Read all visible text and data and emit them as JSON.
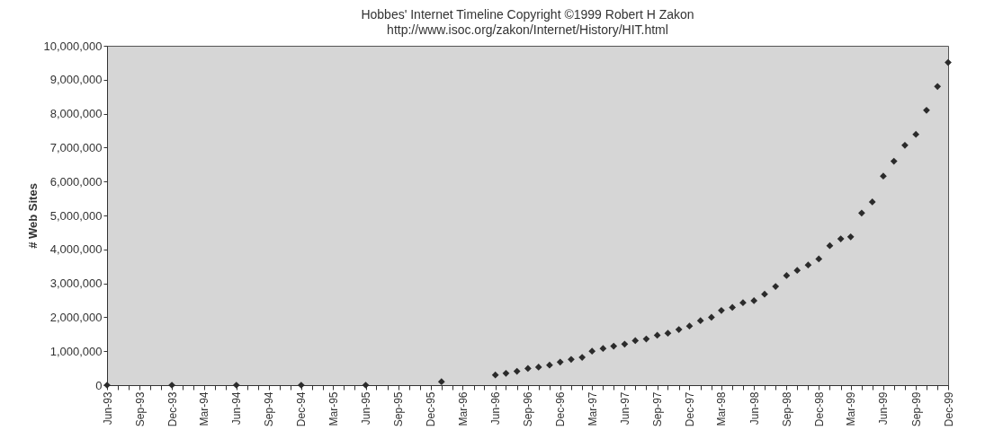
{
  "chart_data": {
    "type": "scatter",
    "title": "Hobbes' Internet Timeline Copyright ©1999 Robert H Zakon",
    "subtitle": "http://www.isoc.org/zakon/Internet/History/HIT.html",
    "ylabel": "# Web Sites",
    "x": [
      "1993-06",
      "1993-12",
      "1994-06",
      "1994-12",
      "1995-06",
      "1996-01",
      "1996-06",
      "1996-07",
      "1996-08",
      "1996-09",
      "1996-10",
      "1996-11",
      "1996-12",
      "1997-01",
      "1997-02",
      "1997-03",
      "1997-04",
      "1997-05",
      "1997-06",
      "1997-07",
      "1997-08",
      "1997-09",
      "1997-10",
      "1997-11",
      "1997-12",
      "1998-01",
      "1998-02",
      "1998-03",
      "1998-04",
      "1998-05",
      "1998-06",
      "1998-07",
      "1998-08",
      "1998-09",
      "1998-10",
      "1998-11",
      "1998-12",
      "1999-01",
      "1999-02",
      "1999-03",
      "1999-04",
      "1999-05",
      "1999-06",
      "1999-07",
      "1999-08",
      "1999-09",
      "1999-10",
      "1999-11",
      "1999-12"
    ],
    "series": [
      {
        "color": "#2b2b2b",
        "values": [
          0,
          0,
          0,
          0,
          0,
          100000,
          300000,
          350000,
          410000,
          490000,
          530000,
          590000,
          680000,
          760000,
          820000,
          1000000,
          1080000,
          1150000,
          1210000,
          1310000,
          1360000,
          1470000,
          1530000,
          1640000,
          1740000,
          1900000,
          2000000,
          2200000,
          2290000,
          2430000,
          2490000,
          2680000,
          2910000,
          3230000,
          3380000,
          3540000,
          3720000,
          4110000,
          4310000,
          4370000,
          5070000,
          5400000,
          6160000,
          6600000,
          7070000,
          7390000,
          8100000,
          8800000,
          9510000
        ]
      }
    ],
    "xlim": [
      "1993-06",
      "1999-12"
    ],
    "xticks": [
      {
        "value": "1993-06",
        "label": "Jun-93"
      },
      {
        "value": "1993-07",
        "label": null
      },
      {
        "value": "1993-08",
        "label": null
      },
      {
        "value": "1993-09",
        "label": "Sep-93"
      },
      {
        "value": "1993-10",
        "label": null
      },
      {
        "value": "1993-11",
        "label": null
      },
      {
        "value": "1993-12",
        "label": "Dec-93"
      },
      {
        "value": "1994-01",
        "label": null
      },
      {
        "value": "1994-02",
        "label": null
      },
      {
        "value": "1994-03",
        "label": "Mar-94"
      },
      {
        "value": "1994-04",
        "label": null
      },
      {
        "value": "1994-05",
        "label": null
      },
      {
        "value": "1994-06",
        "label": "Jun-94"
      },
      {
        "value": "1994-07",
        "label": null
      },
      {
        "value": "1994-08",
        "label": null
      },
      {
        "value": "1994-09",
        "label": "Sep-94"
      },
      {
        "value": "1994-10",
        "label": null
      },
      {
        "value": "1994-11",
        "label": null
      },
      {
        "value": "1994-12",
        "label": "Dec-94"
      },
      {
        "value": "1995-01",
        "label": null
      },
      {
        "value": "1995-02",
        "label": null
      },
      {
        "value": "1995-03",
        "label": "Mar-95"
      },
      {
        "value": "1995-04",
        "label": null
      },
      {
        "value": "1995-05",
        "label": null
      },
      {
        "value": "1995-06",
        "label": "Jun-95"
      },
      {
        "value": "1995-07",
        "label": null
      },
      {
        "value": "1995-08",
        "label": null
      },
      {
        "value": "1995-09",
        "label": "Sep-95"
      },
      {
        "value": "1995-10",
        "label": null
      },
      {
        "value": "1995-11",
        "label": null
      },
      {
        "value": "1995-12",
        "label": "Dec-95"
      },
      {
        "value": "1996-01",
        "label": null
      },
      {
        "value": "1996-02",
        "label": null
      },
      {
        "value": "1996-03",
        "label": "Mar-96"
      },
      {
        "value": "1996-04",
        "label": null
      },
      {
        "value": "1996-05",
        "label": null
      },
      {
        "value": "1996-06",
        "label": "Jun-96"
      },
      {
        "value": "1996-07",
        "label": null
      },
      {
        "value": "1996-08",
        "label": null
      },
      {
        "value": "1996-09",
        "label": "Sep-96"
      },
      {
        "value": "1996-10",
        "label": null
      },
      {
        "value": "1996-11",
        "label": null
      },
      {
        "value": "1996-12",
        "label": "Dec-96"
      },
      {
        "value": "1997-01",
        "label": null
      },
      {
        "value": "1997-02",
        "label": null
      },
      {
        "value": "1997-03",
        "label": "Mar-97"
      },
      {
        "value": "1997-04",
        "label": null
      },
      {
        "value": "1997-05",
        "label": null
      },
      {
        "value": "1997-06",
        "label": "Jun-97"
      },
      {
        "value": "1997-07",
        "label": null
      },
      {
        "value": "1997-08",
        "label": null
      },
      {
        "value": "1997-09",
        "label": "Sep-97"
      },
      {
        "value": "1997-10",
        "label": null
      },
      {
        "value": "1997-11",
        "label": null
      },
      {
        "value": "1997-12",
        "label": "Dec-97"
      },
      {
        "value": "1998-01",
        "label": null
      },
      {
        "value": "1998-02",
        "label": null
      },
      {
        "value": "1998-03",
        "label": "Mar-98"
      },
      {
        "value": "1998-04",
        "label": null
      },
      {
        "value": "1998-05",
        "label": null
      },
      {
        "value": "1998-06",
        "label": "Jun-98"
      },
      {
        "value": "1998-07",
        "label": null
      },
      {
        "value": "1998-08",
        "label": null
      },
      {
        "value": "1998-09",
        "label": "Sep-98"
      },
      {
        "value": "1998-10",
        "label": null
      },
      {
        "value": "1998-11",
        "label": null
      },
      {
        "value": "1998-12",
        "label": "Dec-98"
      },
      {
        "value": "1999-01",
        "label": null
      },
      {
        "value": "1999-02",
        "label": null
      },
      {
        "value": "1999-03",
        "label": "Mar-99"
      },
      {
        "value": "1999-04",
        "label": null
      },
      {
        "value": "1999-05",
        "label": null
      },
      {
        "value": "1999-06",
        "label": "Jun-99"
      },
      {
        "value": "1999-07",
        "label": null
      },
      {
        "value": "1999-08",
        "label": null
      },
      {
        "value": "1999-09",
        "label": "Sep-99"
      },
      {
        "value": "1999-10",
        "label": null
      },
      {
        "value": "1999-11",
        "label": null
      },
      {
        "value": "1999-12",
        "label": "Dec-99"
      }
    ],
    "ylim": [
      0,
      10000000
    ],
    "yticks": [
      0,
      {
        "value": 1000000,
        "label": "1,000,000"
      },
      {
        "value": 2000000,
        "label": "2,000,000"
      },
      {
        "value": 3000000,
        "label": "3,000,000"
      },
      {
        "value": 4000000,
        "label": "4,000,000"
      },
      {
        "value": 5000000,
        "label": "5,000,000"
      },
      {
        "value": 6000000,
        "label": "6,000,000"
      },
      {
        "value": 7000000,
        "label": "7,000,000"
      },
      {
        "value": 8000000,
        "label": "8,000,000"
      },
      {
        "value": 9000000,
        "label": "9,000,000"
      },
      {
        "value": 10000000,
        "label": "10,000,000"
      }
    ],
    "marker": "diamond",
    "grid": false,
    "legend": false
  }
}
